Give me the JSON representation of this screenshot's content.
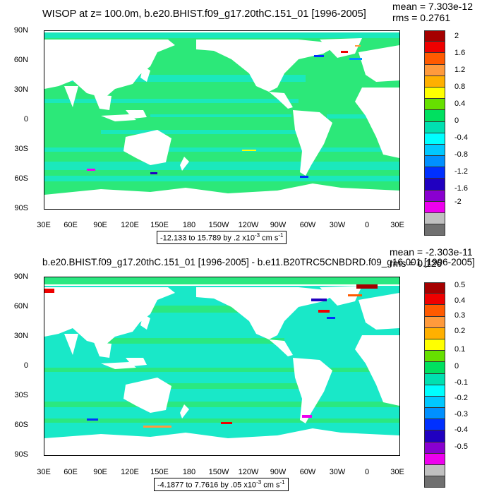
{
  "panels": [
    {
      "title": "WISOP at z= 100.0m, b.e20.BHIST.f09_g17.20thC.151_01 [1996-2005]",
      "mean": "mean = 7.303e-12",
      "rms": "rms = 0.2761",
      "range_text": "-12.133 to 15.789 by .2 x10",
      "range_exp": "-3",
      "range_unit": " cm s",
      "range_unit_exp": "-1",
      "colorbar_labels": [
        "2",
        "1.6",
        "1.2",
        "0.8",
        "0.4",
        "0",
        "-0.4",
        "-0.8",
        "-1.2",
        "-1.6",
        "-2"
      ]
    },
    {
      "title": "b.e20.BHIST.f09_g17.20thC.151_01 [1996-2005] - b.e11.B20TRC5CNBDRD.f09_g16.001 [1996-2005]",
      "mean": "mean = -2.303e-11",
      "rms": "rms = 0.126",
      "range_text": "-4.1877 to 7.7616 by .05 x10",
      "range_exp": "-3",
      "range_unit": " cm s",
      "range_unit_exp": "-1",
      "colorbar_labels": [
        "0.5",
        "0.4",
        "0.3",
        "0.2",
        "0.1",
        "0",
        "-0.1",
        "-0.2",
        "-0.3",
        "-0.4",
        "-0.5"
      ]
    }
  ],
  "axes": {
    "lat_labels": [
      "90N",
      "60N",
      "30N",
      "0",
      "30S",
      "60S",
      "90S"
    ],
    "lon_labels": [
      "30E",
      "60E",
      "90E",
      "120E",
      "150E",
      "180",
      "150W",
      "120W",
      "90W",
      "60W",
      "30W",
      "0",
      "30E"
    ]
  },
  "colors": {
    "colorbar": [
      "#a50000",
      "#ee0000",
      "#ff5a00",
      "#ff9a3c",
      "#ffb000",
      "#ffff00",
      "#66e000",
      "#00e060",
      "#00e0b0",
      "#00ffff",
      "#00c8ff",
      "#0090ff",
      "#0030ff",
      "#2000c0",
      "#8a00d0",
      "#ee00ee",
      "#c0c0c0",
      "#707070"
    ],
    "ocean_main": "#2ce879",
    "ocean_alt": "#19e8c8",
    "land": "#ffffff"
  }
}
